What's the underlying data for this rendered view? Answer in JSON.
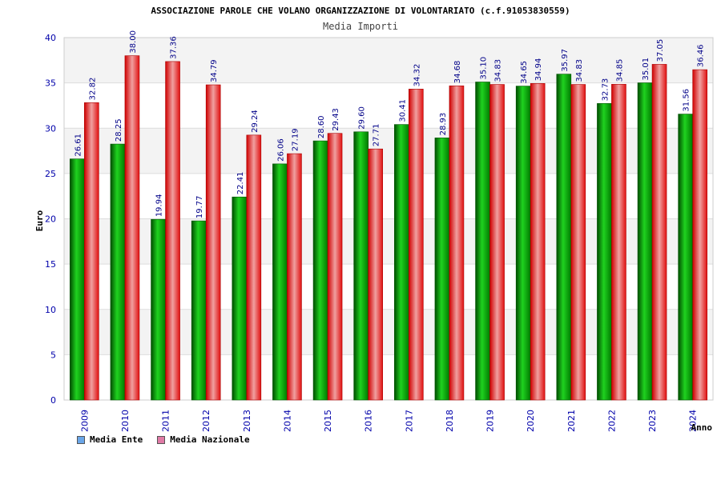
{
  "chart_data": {
    "type": "bar",
    "title": "ASSOCIAZIONE PAROLE CHE VOLANO ORGANIZZAZIONE DI VOLONTARIATO (c.f.91053830559)",
    "subtitle": "Media Importi",
    "xlabel": "Anno",
    "ylabel": "Euro",
    "ylim": [
      0,
      40
    ],
    "yticks": [
      0,
      5,
      10,
      15,
      20,
      25,
      30,
      35,
      40
    ],
    "categories": [
      "2009",
      "2010",
      "2011",
      "2012",
      "2013",
      "2014",
      "2015",
      "2016",
      "2017",
      "2018",
      "2019",
      "2020",
      "2021",
      "2022",
      "2023",
      "2024"
    ],
    "series": [
      {
        "name": "Media Ente",
        "values": [
          26.61,
          28.25,
          19.94,
          19.77,
          22.41,
          26.06,
          28.6,
          29.6,
          30.41,
          28.93,
          35.1,
          34.65,
          35.97,
          32.73,
          35.01,
          31.56
        ]
      },
      {
        "name": "Media Nazionale",
        "values": [
          32.82,
          38.0,
          37.36,
          34.79,
          29.24,
          27.19,
          29.43,
          27.71,
          34.32,
          34.68,
          34.83,
          34.94,
          34.83,
          34.85,
          37.05,
          36.46
        ]
      }
    ],
    "legend": [
      {
        "label": "Media Ente",
        "color": "#6aa6e8"
      },
      {
        "label": "Media Nazionale",
        "color": "#e07aa6"
      }
    ],
    "grid": true,
    "legend_position": "bottom-left"
  }
}
